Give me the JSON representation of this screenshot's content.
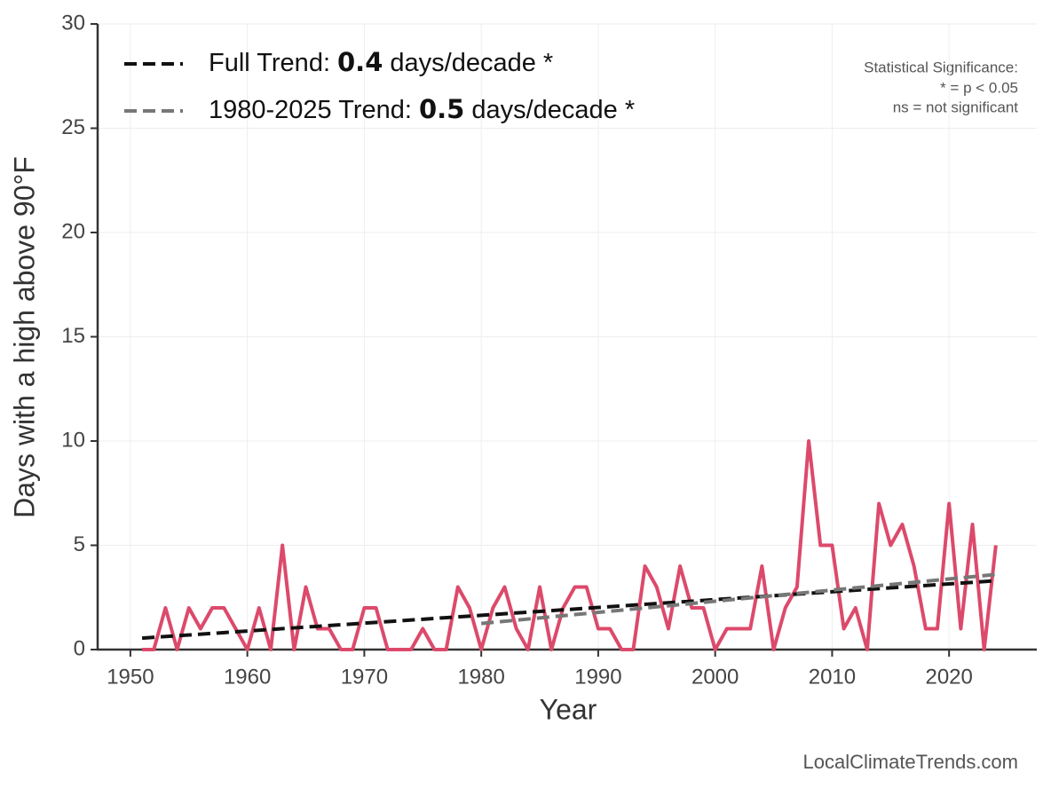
{
  "chart_data": {
    "type": "line",
    "xlabel": "Year",
    "ylabel": "Days with a high above 90°F",
    "xlim": [
      1947.2,
      2027.5
    ],
    "xticks": [
      1950,
      1960,
      1970,
      1980,
      1990,
      2000,
      2010,
      2020
    ],
    "ylim": [
      0,
      30
    ],
    "yticks": [
      0,
      5,
      10,
      15,
      20,
      25,
      30
    ],
    "grid": true,
    "x": [
      1951,
      1952,
      1953,
      1954,
      1955,
      1956,
      1957,
      1958,
      1959,
      1960,
      1961,
      1962,
      1963,
      1964,
      1965,
      1966,
      1967,
      1968,
      1969,
      1970,
      1971,
      1972,
      1973,
      1974,
      1975,
      1976,
      1977,
      1978,
      1979,
      1980,
      1981,
      1982,
      1983,
      1984,
      1985,
      1986,
      1987,
      1988,
      1989,
      1990,
      1991,
      1992,
      1993,
      1994,
      1995,
      1996,
      1997,
      1998,
      1999,
      2000,
      2001,
      2002,
      2003,
      2004,
      2005,
      2006,
      2007,
      2008,
      2009,
      2010,
      2011,
      2012,
      2013,
      2014,
      2015,
      2016,
      2017,
      2018,
      2019,
      2020,
      2021,
      2022,
      2023,
      2024
    ],
    "series": [
      {
        "color": "#dc4a6b",
        "values": [
          0,
          0,
          2,
          0,
          2,
          1,
          2,
          2,
          1,
          0,
          2,
          0,
          5,
          0,
          3,
          1,
          1,
          0,
          0,
          2,
          2,
          0,
          0,
          0,
          1,
          0,
          0,
          3,
          2,
          0,
          2,
          3,
          1,
          0,
          3,
          0,
          2,
          3,
          3,
          1,
          1,
          0,
          0,
          4,
          3,
          1,
          4,
          2,
          2,
          0,
          1,
          1,
          1,
          4,
          0,
          2,
          3,
          10,
          5,
          5,
          1,
          2,
          0,
          7,
          5,
          6,
          4,
          1,
          1,
          7,
          1,
          6,
          0,
          5
        ]
      }
    ],
    "trends": [
      {
        "color": "#111111",
        "x": [
          1951,
          2024
        ],
        "values": [
          0.55,
          3.3
        ],
        "legend": {
          "prefix": "Full Trend:",
          "value": 0.4,
          "suffix": "days/decade *"
        }
      },
      {
        "color": "#777777",
        "x": [
          1980,
          2024
        ],
        "values": [
          1.25,
          3.6
        ],
        "legend": {
          "prefix": "1980-2025 Trend:",
          "value": 0.5,
          "suffix": "days/decade *"
        }
      }
    ],
    "annotations": [
      "Statistical Significance:",
      "* = p < 0.05",
      "ns = not significant"
    ],
    "source": "LocalClimateTrends.com"
  }
}
